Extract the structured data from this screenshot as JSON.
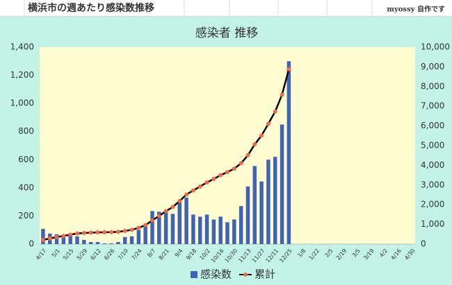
{
  "header": {
    "title": "横浜市の週あたり感染数推移",
    "author": "myossy 自作です"
  },
  "chart_data": {
    "type": "bar_line",
    "title": "感染者 推移",
    "categories": [
      "4/17",
      null,
      "5/1",
      null,
      "5/15",
      null,
      "5/29",
      null,
      "6/12",
      null,
      "6/26",
      null,
      "7/10",
      null,
      "7/24",
      null,
      "8/7",
      null,
      "8/21",
      null,
      "9/4",
      null,
      "9/18",
      null,
      "10/2",
      null,
      "10/16",
      null,
      "10/30",
      null,
      "11/13",
      null,
      "11/27",
      null,
      "12/11",
      null,
      "12/25",
      null,
      "1/8",
      null,
      "1/22",
      null,
      "2/5",
      null,
      "2/19",
      null,
      "3/5",
      null,
      "3/19",
      null,
      "4/2",
      null,
      "4/16",
      null,
      "4/30"
    ],
    "series": [
      {
        "name": "感染数",
        "color": "#3f63b5",
        "axis": "y",
        "values": [
          108,
          75,
          70,
          60,
          65,
          55,
          30,
          15,
          15,
          5,
          5,
          15,
          50,
          55,
          100,
          140,
          235,
          230,
          240,
          215,
          300,
          330,
          210,
          195,
          210,
          175,
          195,
          155,
          175,
          270,
          410,
          555,
          445,
          600,
          620,
          850,
          1300,
          null,
          null,
          null,
          null,
          null,
          null,
          null,
          null,
          null,
          null,
          null,
          null,
          null,
          null,
          null,
          null,
          null,
          null
        ]
      },
      {
        "name": "累計",
        "color": "#000000",
        "marker_color": "#ee6a4a",
        "axis": "y2",
        "values": [
          210,
          285,
          355,
          415,
          480,
          535,
          565,
          580,
          595,
          600,
          605,
          620,
          670,
          725,
          825,
          965,
          1200,
          1430,
          1670,
          1885,
          2185,
          2515,
          2725,
          2920,
          3130,
          3305,
          3500,
          3655,
          3830,
          4100,
          4510,
          5065,
          5510,
          6110,
          6730,
          7580,
          8880,
          null,
          null,
          null,
          null,
          null,
          null,
          null,
          null,
          null,
          null,
          null,
          null,
          null,
          null,
          null,
          null,
          null,
          null
        ]
      }
    ],
    "ylim": [
      0,
      1400
    ],
    "yticks": [
      0,
      200,
      400,
      600,
      800,
      {
        "value": 1000,
        "label": "1,000"
      },
      {
        "value": 1200,
        "label": "1,200"
      },
      {
        "value": 1400,
        "label": "1,400"
      }
    ],
    "y2lim": [
      0,
      10000
    ],
    "y2ticks": [
      0,
      {
        "value": 1000,
        "label": "1,000"
      },
      {
        "value": 2000,
        "label": "2,000"
      },
      {
        "value": 3000,
        "label": "3,000"
      },
      {
        "value": 4000,
        "label": "4,000"
      },
      {
        "value": 5000,
        "label": "5,000"
      },
      {
        "value": 6000,
        "label": "6,000"
      },
      {
        "value": 7000,
        "label": "7,000"
      },
      {
        "value": 8000,
        "label": "8,000"
      },
      {
        "value": 9000,
        "label": "9,000"
      },
      {
        "value": 10000,
        "label": "10,000"
      }
    ],
    "grid": false,
    "legend": "bottom"
  }
}
